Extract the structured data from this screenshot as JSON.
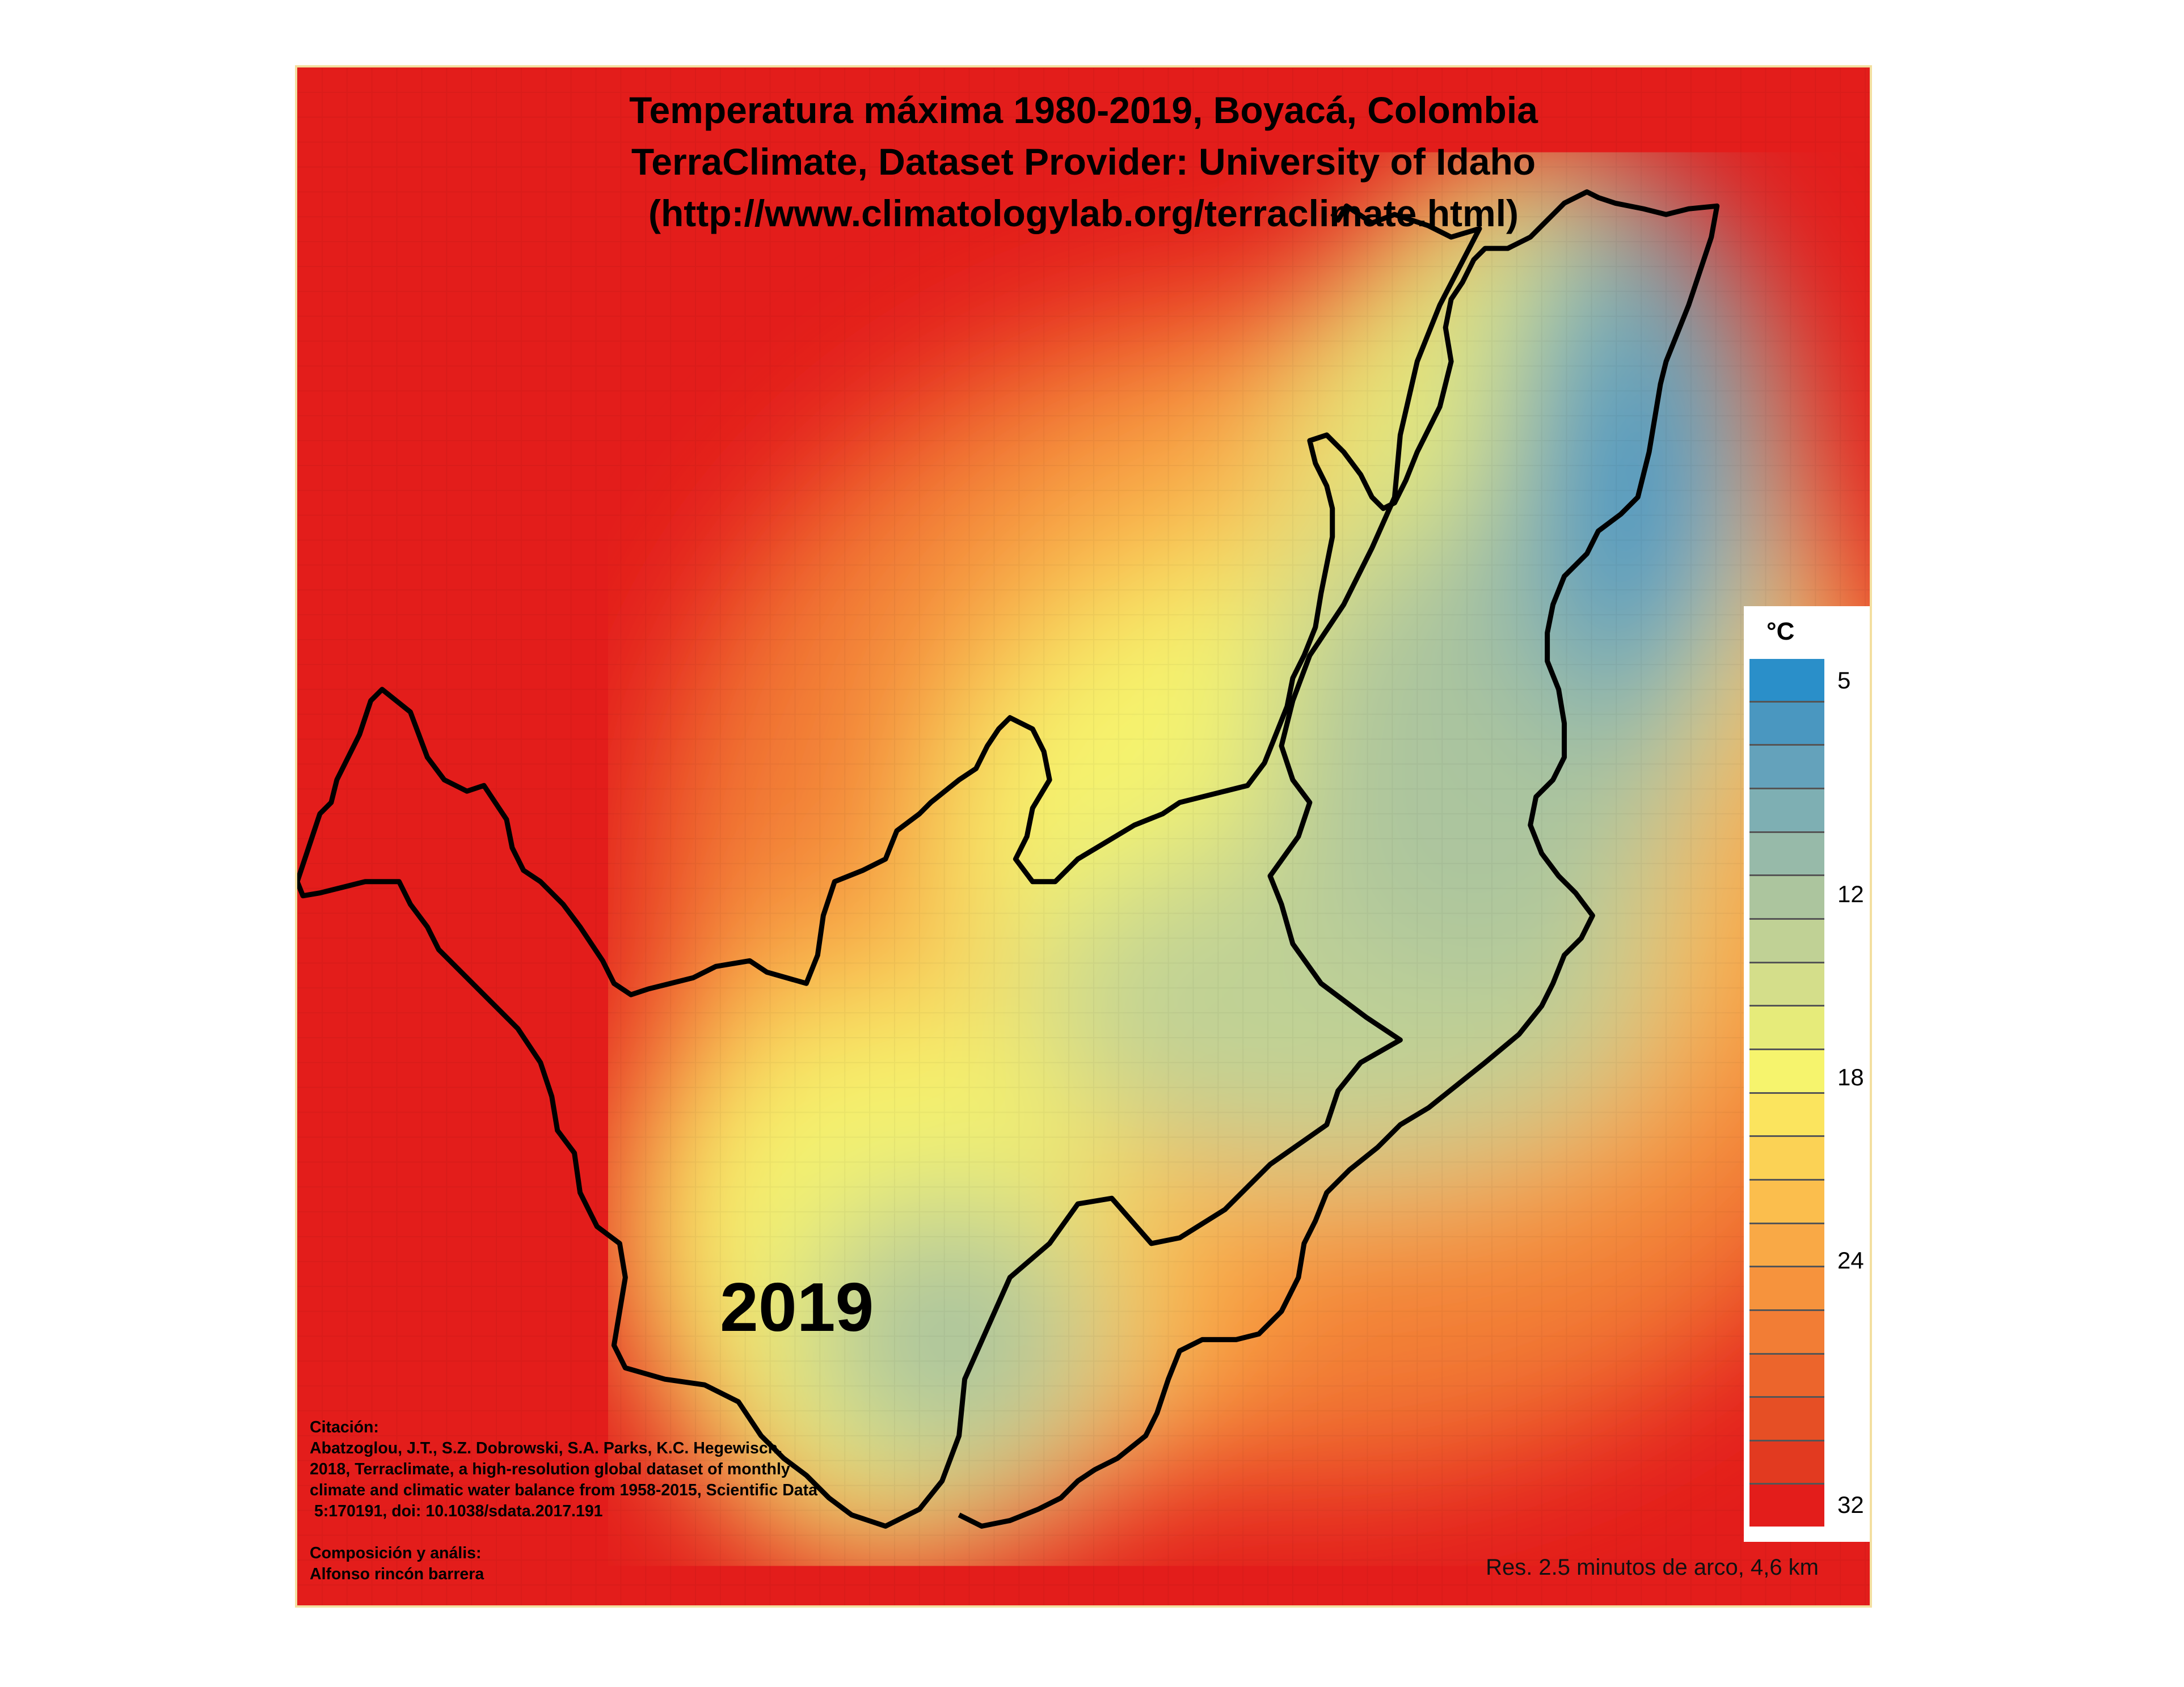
{
  "map": {
    "title_lines": [
      "Temperatura máxima 1980-2019, Boyacá, Colombia",
      "TerraClimate, Dataset Provider: University of Idaho",
      "(http://www.climatologylab.org/terraclimate.html)"
    ],
    "year": "2019",
    "citation_text": "Citación:\nAbatzoglou, J.T., S.Z. Dobrowski, S.A. Parks, K.C. Hegewisch,\n2018, Terraclimate, a high-resolution global dataset of monthly\nclimate and climatic water balance from 1958-2015, Scientific Data\n 5:170191, doi: 10.1038/sdata.2017.191\n\nComposición y anális:\nAlfonso rincón barrera",
    "resolution_note": "Res. 2.5 minutos de arco, 4,6 km",
    "boundary_color": "#000000"
  },
  "legend": {
    "unit": "°C",
    "min": 5,
    "max": 32,
    "ticks": [
      "5",
      "12",
      "18",
      "24",
      "32"
    ],
    "colors": [
      "#2a8fc9",
      "#4a97c0",
      "#64a2bb",
      "#7eafb3",
      "#97baa9",
      "#acc59e",
      "#c0d195",
      "#d4de8a",
      "#e6eb7a",
      "#f6f46d",
      "#fbe45e",
      "#fbd255",
      "#fbbe4d",
      "#f9a946",
      "#f6933d",
      "#f27d35",
      "#ec652c",
      "#e64f25",
      "#e23a20",
      "#e31d1b"
    ]
  }
}
